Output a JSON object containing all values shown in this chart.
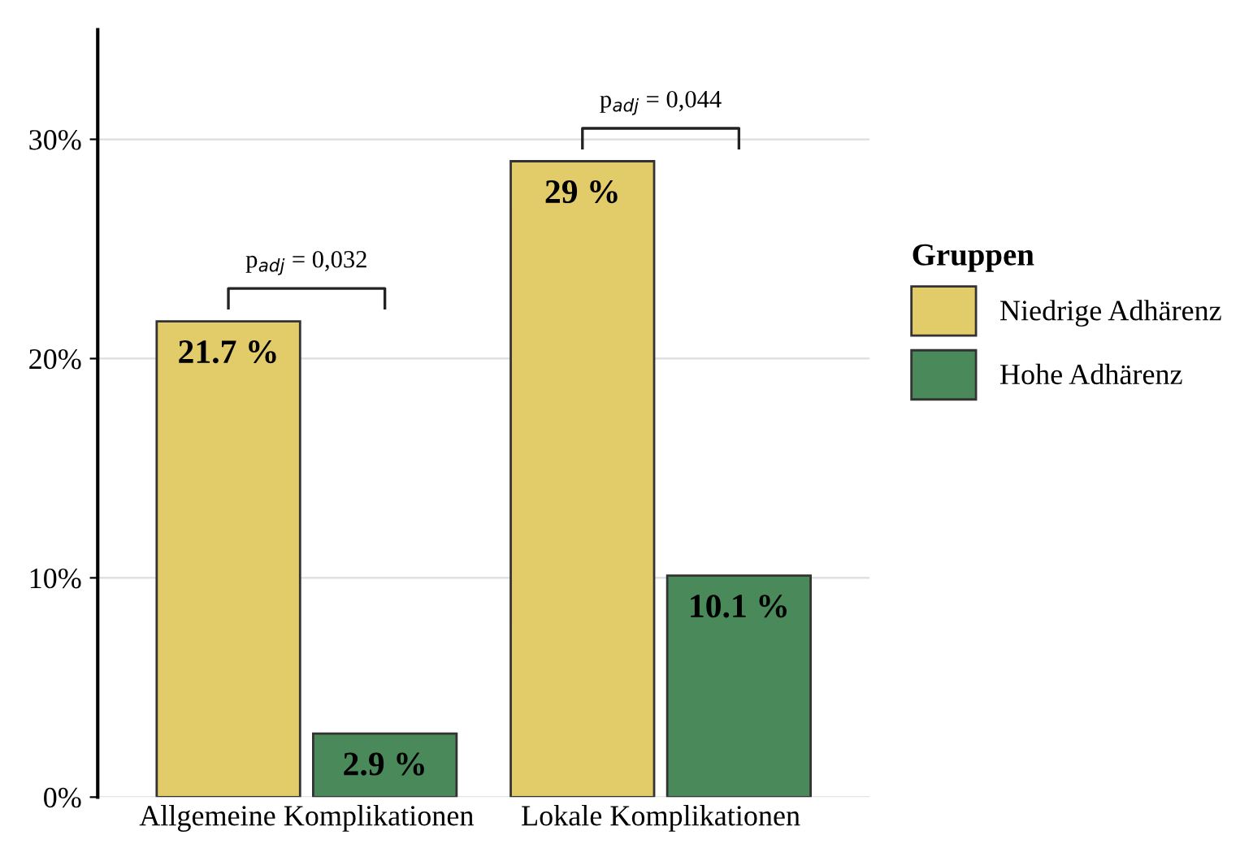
{
  "chart_data": {
    "type": "bar",
    "categories": [
      "Allgemeine Komplikationen",
      "Lokale Komplikationen"
    ],
    "series": [
      {
        "name": "Niedrige Adhärenz",
        "color": "#e2cb69",
        "values": [
          21.7,
          29
        ],
        "value_labels": [
          "21.7 %",
          "29 %"
        ]
      },
      {
        "name": "Hohe Adhärenz",
        "color": "#4a8a5a",
        "values": [
          2.9,
          10.1
        ],
        "value_labels": [
          "2.9 %",
          "10.1 %"
        ]
      }
    ],
    "ylim": [
      0,
      35
    ],
    "yticks": [
      {
        "value": 0,
        "label": "0%"
      },
      {
        "value": 10,
        "label": "10%"
      },
      {
        "value": 20,
        "label": "20%"
      },
      {
        "value": 30,
        "label": "30%"
      }
    ],
    "grid": "y",
    "legend": "right",
    "legend_title": "Gruppen",
    "annotations": [
      "p$_{adj}$ = 0,032",
      "p$_{adj}$ = 0,044"
    ]
  }
}
